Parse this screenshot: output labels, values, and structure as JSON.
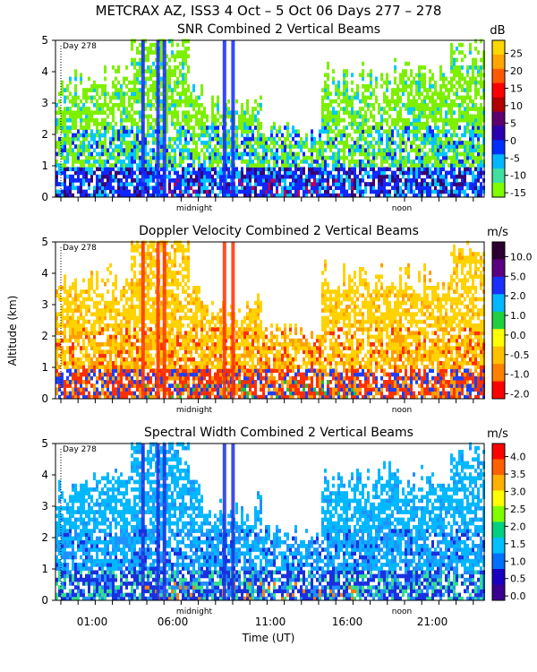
{
  "header": {
    "title": "METCRAX AZ, ISS3   4 Oct –  5 Oct 06 Days 277 – 278"
  },
  "y_axis_label": "Altitude (km)",
  "x_axis_label": "Time (UT)",
  "x_tick_labels": [
    "01:00",
    "06:00",
    "11:00",
    "16:00",
    "21:00"
  ],
  "chart_data": [
    {
      "type": "heatmap",
      "title": "SNR Combined 2 Vertical Beams",
      "day_label": "Day 278",
      "annotations": [
        "midnight",
        "noon"
      ],
      "ylim": [
        0,
        5
      ],
      "y_ticks": [
        "0",
        "1",
        "2",
        "3",
        "4",
        "5"
      ],
      "colorbar": {
        "unit": "dB",
        "labels": [
          "25",
          "20",
          "15",
          "10",
          "5",
          "0",
          "-5",
          "-10",
          "-15"
        ],
        "colors": [
          "#ffd700",
          "#ffa500",
          "#ff5a00",
          "#ff0000",
          "#b00000",
          "#5c006c",
          "#2a00b0",
          "#0030ff",
          "#00b8ff",
          "#40e0a0",
          "#80ff00"
        ]
      },
      "palette": {
        "weak": "#7df000",
        "mid": "#00c8ff",
        "strong": "#1028ff",
        "deep": "#3a0070",
        "hot": "#b8005a"
      }
    },
    {
      "type": "heatmap",
      "title": "Doppler Velocity Combined 2 Vertical Beams",
      "day_label": "Day 278",
      "annotations": [
        "midnight",
        "noon"
      ],
      "ylim": [
        0,
        5
      ],
      "y_ticks": [
        "0",
        "1",
        "2",
        "3",
        "4",
        "5"
      ],
      "colorbar": {
        "unit": "m/s",
        "labels": [
          "10.0",
          "5.0",
          "2.0",
          "1.0",
          "0.0",
          "-0.5",
          "-1.0",
          "-2.0"
        ],
        "colors": [
          "#2a0030",
          "#5a0080",
          "#1a30ff",
          "#00b8ff",
          "#20d040",
          "#ffff00",
          "#ffc000",
          "#ff8000",
          "#ff0000"
        ]
      },
      "palette": {
        "weak": "#ffd200",
        "mid": "#ffa000",
        "strong": "#ff3000",
        "deep": "#1a40ff",
        "hot": "#20c040"
      }
    },
    {
      "type": "heatmap",
      "title": "Spectral Width Combined 2 Vertical Beams",
      "day_label": "Day 278",
      "annotations": [
        "midnight",
        "noon"
      ],
      "ylim": [
        0,
        5
      ],
      "y_ticks": [
        "0",
        "1",
        "2",
        "3",
        "4",
        "5"
      ],
      "colorbar": {
        "unit": "m/s",
        "labels": [
          "4.0",
          "3.5",
          "3.0",
          "2.5",
          "2.0",
          "1.5",
          "1.0",
          "0.5",
          "0.0"
        ],
        "colors": [
          "#ff0000",
          "#ff6000",
          "#ffb000",
          "#ffff00",
          "#80ff00",
          "#00d080",
          "#00c0ff",
          "#0070ff",
          "#1a00c0",
          "#3a0090"
        ]
      },
      "palette": {
        "weak": "#00b8ff",
        "mid": "#2090ff",
        "strong": "#1a30e0",
        "deep": "#30e090",
        "hot": "#ff8000"
      }
    }
  ]
}
